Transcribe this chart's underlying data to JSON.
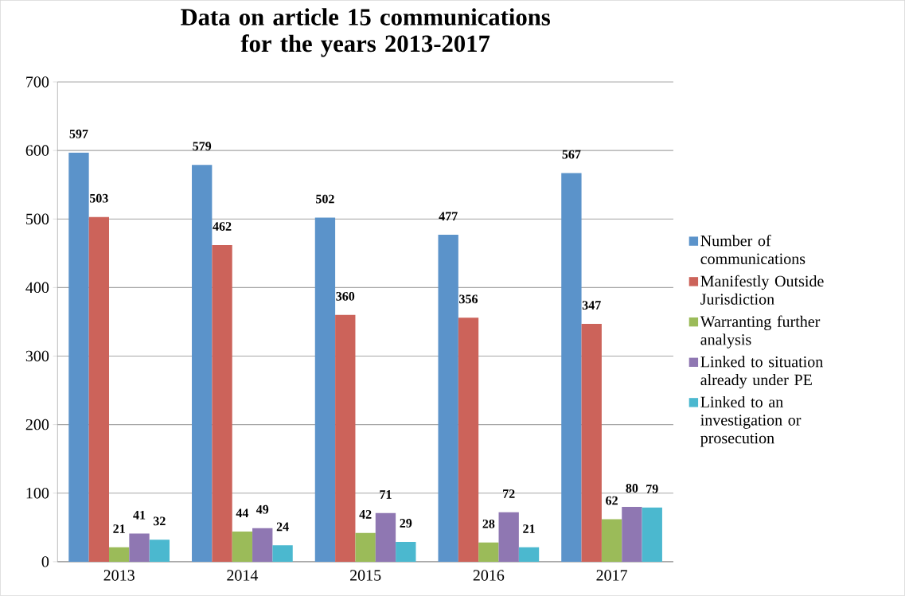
{
  "chart_data": {
    "type": "bar",
    "title": "Data on article 15 communications for the years 2013-2017",
    "categories": [
      "2013",
      "2014",
      "2015",
      "2016",
      "2017"
    ],
    "series": [
      {
        "name": "Number of communications",
        "color": "#5b93ca",
        "values": [
          597,
          579,
          502,
          477,
          567
        ]
      },
      {
        "name": "Manifestly Outside Jurisdiction",
        "color": "#cc635a",
        "values": [
          503,
          462,
          360,
          356,
          347
        ]
      },
      {
        "name": "Warranting further analysis",
        "color": "#9bbb59",
        "values": [
          21,
          44,
          42,
          28,
          62
        ]
      },
      {
        "name": "Linked to situation already under PE",
        "color": "#8f77b2",
        "values": [
          41,
          49,
          71,
          72,
          80
        ]
      },
      {
        "name": "Linked to an investigation or prosecution",
        "color": "#4bb8cf",
        "values": [
          32,
          24,
          29,
          21,
          79
        ]
      }
    ],
    "ylim": [
      0,
      700
    ],
    "yticks": [
      0,
      100,
      200,
      300,
      400,
      500,
      600,
      700
    ],
    "grid": "y",
    "legend": "right",
    "data_labels": true
  }
}
